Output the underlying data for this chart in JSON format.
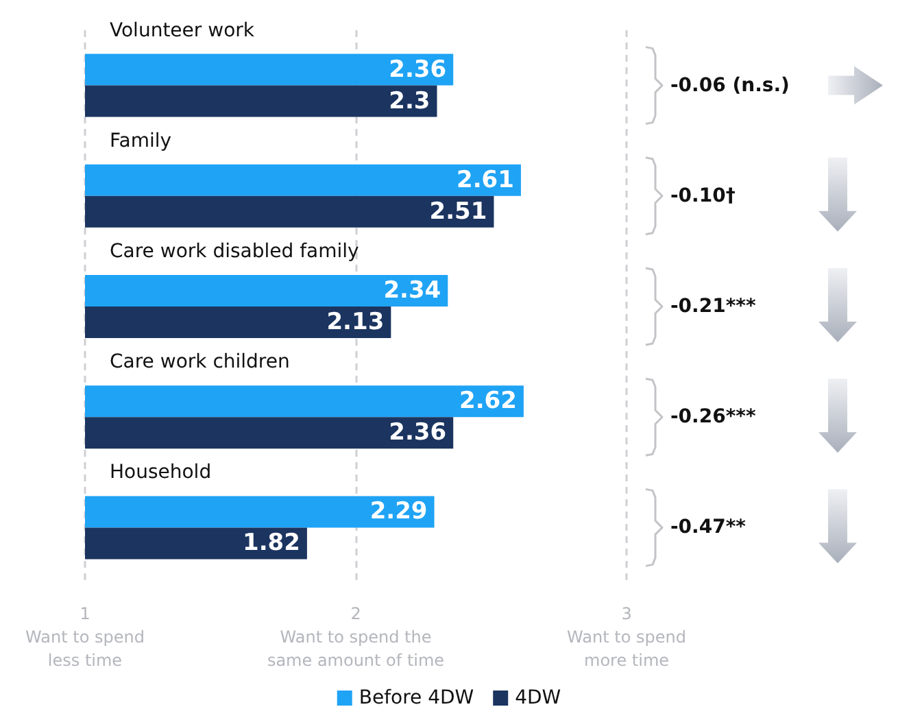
{
  "chart_data": {
    "type": "bar",
    "orientation": "horizontal",
    "categories": [
      "Volunteer work",
      "Family",
      "Care work disabled family",
      "Care work children",
      "Household"
    ],
    "series": [
      {
        "name": "Before 4DW",
        "color": "#1fa3f5",
        "values": [
          2.36,
          2.61,
          2.34,
          2.62,
          2.29
        ]
      },
      {
        "name": "4DW",
        "color": "#1b3460",
        "values": [
          2.3,
          2.51,
          2.13,
          2.36,
          1.82
        ]
      }
    ],
    "xlim": [
      1,
      3
    ],
    "xticks": [
      {
        "value": 1,
        "label": "1\nWant to spend\nless time"
      },
      {
        "value": 2,
        "label": "2\nWant to spend the\nsame amount of time"
      },
      {
        "value": 3,
        "label": "3\nWant to spend\nmore time"
      }
    ],
    "annotations": [
      "-0.06 (n.s.)",
      "-0.10†",
      "-0.21***",
      "-0.26***",
      "-0.47**"
    ],
    "data_labels": true,
    "grid": "x",
    "legend": "bottom"
  }
}
